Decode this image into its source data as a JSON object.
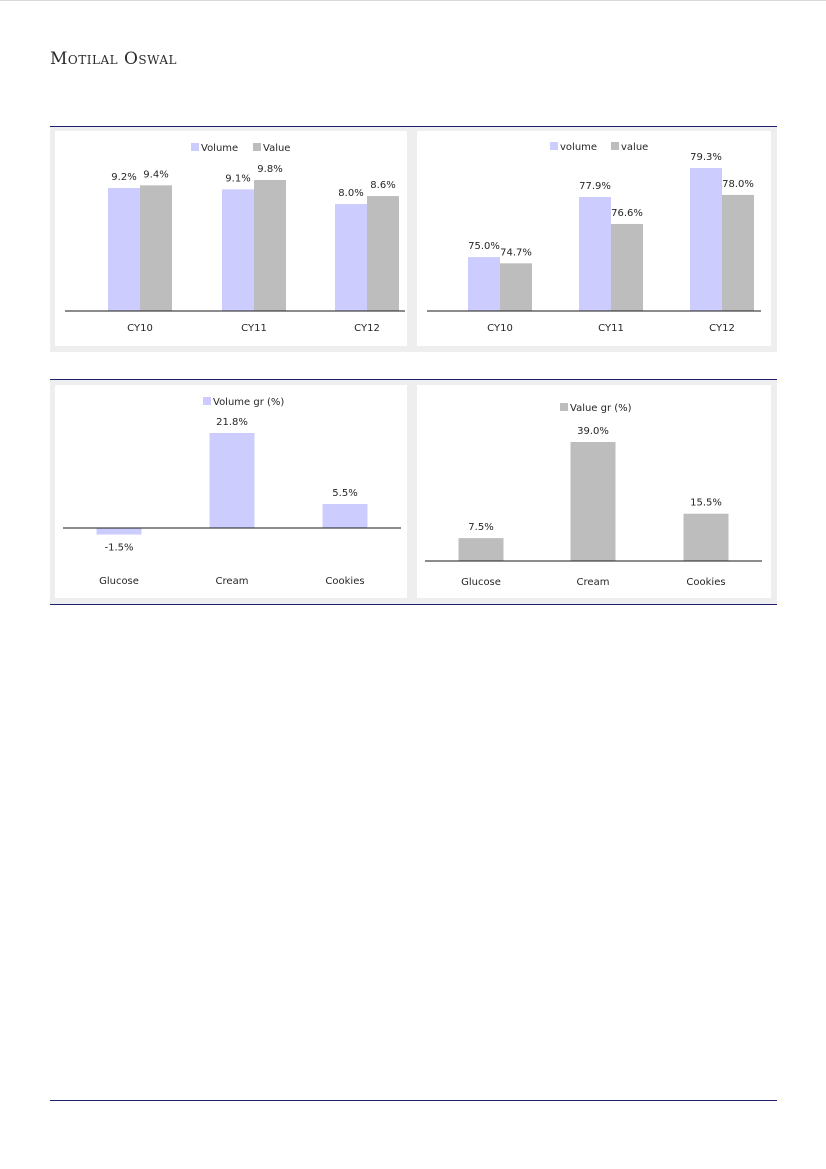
{
  "header": {
    "brand": "Motilal Oswal"
  },
  "colors": {
    "volume": "#ccccff",
    "value": "#bdbdbd",
    "rule": "#1f1f6e",
    "highlight_label": "#1f1f8c"
  },
  "chart_data": [
    {
      "type": "bar",
      "categories": [
        "CY10",
        "CY11",
        "CY12"
      ],
      "series": [
        {
          "name": "Volume",
          "values": [
            9.2,
            9.1,
            8.0
          ]
        },
        {
          "name": "Value",
          "values": [
            9.4,
            9.8,
            8.6
          ]
        }
      ],
      "data_labels": [
        [
          "9.2%",
          "9.1%",
          "8.0%"
        ],
        [
          "9.4%",
          "9.8%",
          "8.6%"
        ]
      ],
      "ylim": [
        0,
        9.8
      ],
      "legend": "top-center"
    },
    {
      "type": "bar",
      "categories": [
        "CY10",
        "CY11",
        "CY12"
      ],
      "series": [
        {
          "name": "volume",
          "values": [
            75.0,
            77.9,
            79.3
          ]
        },
        {
          "name": "value",
          "values": [
            74.7,
            76.6,
            78.0
          ]
        }
      ],
      "data_labels": [
        [
          "75.0%",
          "77.9%",
          "79.3%"
        ],
        [
          "74.7%",
          "76.6%",
          "78.0%"
        ]
      ],
      "ylim": [
        72.4,
        79.3
      ],
      "legend": "top-center"
    },
    {
      "type": "bar",
      "categories": [
        "Glucose",
        "Cream",
        "Cookies"
      ],
      "series": [
        {
          "name": "Volume gr (%)",
          "values": [
            -1.5,
            21.8,
            5.5
          ]
        }
      ],
      "data_labels": [
        [
          "-1.5%",
          "21.8%",
          "5.5%"
        ]
      ],
      "ylim": [
        -1.5,
        21.8
      ],
      "legend": "top-center"
    },
    {
      "type": "bar",
      "categories": [
        "Glucose",
        "Cream",
        "Cookies"
      ],
      "series": [
        {
          "name": "Value gr (%)",
          "values": [
            7.5,
            39.0,
            15.5
          ]
        }
      ],
      "data_labels": [
        [
          "7.5%",
          "39.0%",
          "15.5%"
        ]
      ],
      "ylim": [
        0,
        39.0
      ],
      "legend": "top-center"
    }
  ]
}
